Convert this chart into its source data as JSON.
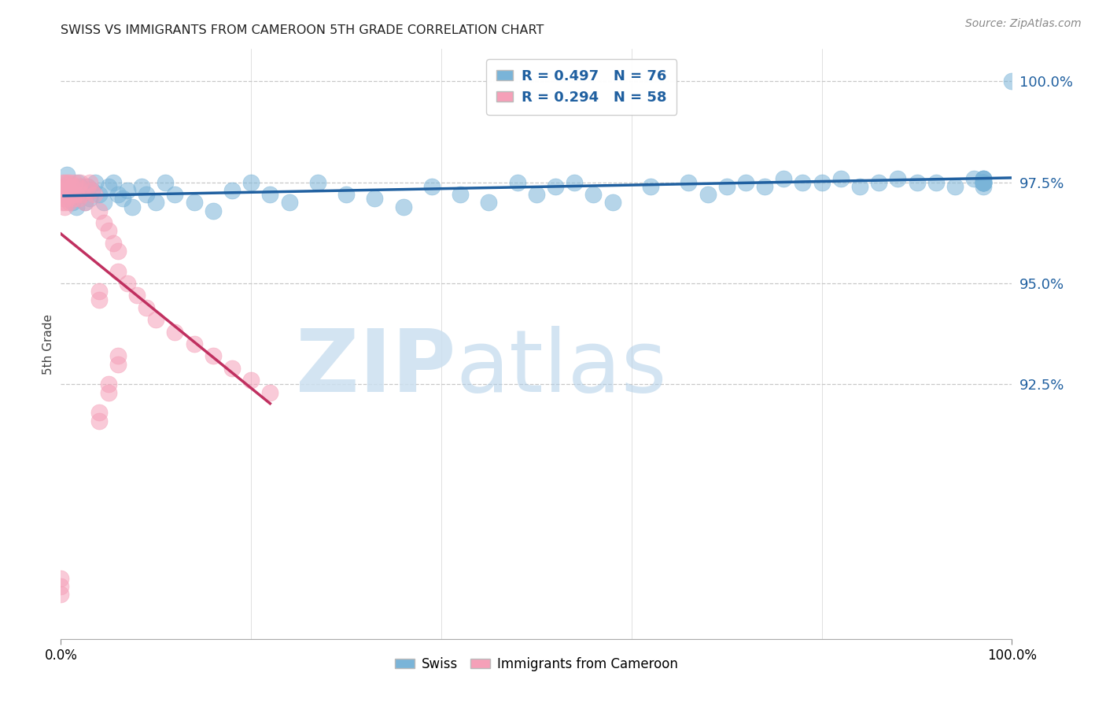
{
  "title": "SWISS VS IMMIGRANTS FROM CAMEROON 5TH GRADE CORRELATION CHART",
  "source": "Source: ZipAtlas.com",
  "ylabel": "5th Grade",
  "blue_R": 0.497,
  "blue_N": 76,
  "pink_R": 0.294,
  "pink_N": 58,
  "blue_color": "#7ab4d8",
  "pink_color": "#f5a0b8",
  "trendline_blue": "#2060a0",
  "trendline_pink": "#c03060",
  "xlim": [
    0.0,
    1.0
  ],
  "ylim": [
    0.862,
    1.008
  ],
  "yticks": [
    1.0,
    0.975,
    0.95,
    0.925
  ],
  "ytick_labels": [
    "100.0%",
    "97.5%",
    "95.0%",
    "92.5%"
  ],
  "grid_color": "#c8c8c8",
  "source_color": "#888888",
  "legend_text_color": "#2060a0",
  "blue_x": [
    0.003,
    0.006,
    0.008,
    0.01,
    0.012,
    0.014,
    0.016,
    0.018,
    0.02,
    0.022,
    0.025,
    0.028,
    0.03,
    0.033,
    0.036,
    0.04,
    0.045,
    0.05,
    0.055,
    0.06,
    0.065,
    0.07,
    0.075,
    0.085,
    0.09,
    0.1,
    0.11,
    0.12,
    0.14,
    0.16,
    0.18,
    0.2,
    0.22,
    0.24,
    0.27,
    0.3,
    0.33,
    0.36,
    0.39,
    0.42,
    0.45,
    0.48,
    0.5,
    0.52,
    0.54,
    0.56,
    0.58,
    0.62,
    0.66,
    0.68,
    0.7,
    0.72,
    0.74,
    0.76,
    0.78,
    0.8,
    0.82,
    0.84,
    0.86,
    0.88,
    0.9,
    0.92,
    0.94,
    0.96,
    0.97,
    0.97,
    0.97,
    0.97,
    0.97,
    0.97,
    0.97,
    0.97,
    0.97,
    0.97,
    0.97,
    1.0
  ],
  "blue_y": [
    0.974,
    0.977,
    0.972,
    0.971,
    0.97,
    0.973,
    0.969,
    0.975,
    0.974,
    0.972,
    0.97,
    0.974,
    0.971,
    0.973,
    0.975,
    0.972,
    0.97,
    0.974,
    0.975,
    0.972,
    0.971,
    0.973,
    0.969,
    0.974,
    0.972,
    0.97,
    0.975,
    0.972,
    0.97,
    0.968,
    0.973,
    0.975,
    0.972,
    0.97,
    0.975,
    0.972,
    0.971,
    0.969,
    0.974,
    0.972,
    0.97,
    0.975,
    0.972,
    0.974,
    0.975,
    0.972,
    0.97,
    0.974,
    0.975,
    0.972,
    0.974,
    0.975,
    0.974,
    0.976,
    0.975,
    0.975,
    0.976,
    0.974,
    0.975,
    0.976,
    0.975,
    0.975,
    0.974,
    0.976,
    0.975,
    0.975,
    0.976,
    0.975,
    0.974,
    0.975,
    0.976,
    0.975,
    0.975,
    0.976,
    0.975,
    1.0
  ],
  "pink_x": [
    0.0,
    0.0,
    0.0,
    0.001,
    0.001,
    0.002,
    0.002,
    0.003,
    0.003,
    0.004,
    0.004,
    0.005,
    0.005,
    0.006,
    0.007,
    0.007,
    0.008,
    0.009,
    0.01,
    0.011,
    0.012,
    0.013,
    0.014,
    0.015,
    0.016,
    0.018,
    0.019,
    0.02,
    0.022,
    0.025,
    0.028,
    0.03,
    0.032,
    0.035,
    0.04,
    0.045,
    0.05,
    0.055,
    0.06,
    0.04,
    0.04,
    0.06,
    0.07,
    0.08,
    0.09,
    0.1,
    0.12,
    0.14,
    0.16,
    0.18,
    0.2,
    0.22,
    0.04,
    0.04,
    0.05,
    0.05,
    0.06,
    0.06
  ],
  "pink_y": [
    0.873,
    0.875,
    0.877,
    0.97,
    0.973,
    0.972,
    0.975,
    0.971,
    0.974,
    0.972,
    0.969,
    0.975,
    0.97,
    0.974,
    0.972,
    0.975,
    0.971,
    0.97,
    0.975,
    0.974,
    0.972,
    0.971,
    0.974,
    0.975,
    0.972,
    0.974,
    0.971,
    0.975,
    0.972,
    0.97,
    0.974,
    0.975,
    0.973,
    0.972,
    0.968,
    0.965,
    0.963,
    0.96,
    0.958,
    0.948,
    0.946,
    0.953,
    0.95,
    0.947,
    0.944,
    0.941,
    0.938,
    0.935,
    0.932,
    0.929,
    0.926,
    0.923,
    0.918,
    0.916,
    0.925,
    0.923,
    0.932,
    0.93
  ]
}
